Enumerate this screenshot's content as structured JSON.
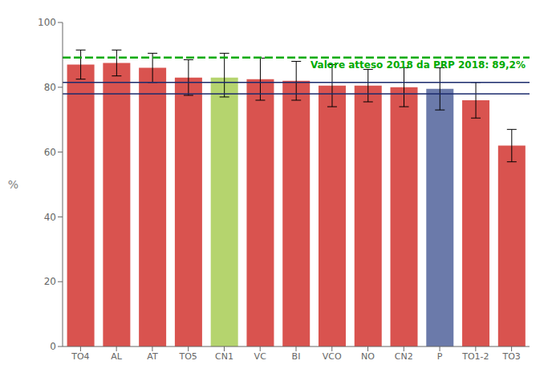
{
  "chart_data": {
    "type": "bar",
    "categories": [
      "TO4",
      "AL",
      "AT",
      "TO5",
      "CN1",
      "VC",
      "BI",
      "VCO",
      "NO",
      "CN2",
      "P",
      "TO1-2",
      "TO3"
    ],
    "values": [
      87.0,
      87.5,
      86.0,
      83.0,
      83.0,
      82.5,
      82.0,
      80.5,
      80.5,
      80.0,
      79.5,
      76.0,
      62.0
    ],
    "errors_upper": [
      4.5,
      4.0,
      4.5,
      5.5,
      7.5,
      6.5,
      6.0,
      6.5,
      5.0,
      6.0,
      6.5,
      5.5,
      5.0
    ],
    "errors_lower": [
      4.5,
      4.0,
      4.5,
      5.5,
      6.0,
      6.5,
      6.0,
      6.5,
      5.0,
      6.0,
      6.5,
      5.5,
      5.0
    ],
    "colors": [
      "#d9534f",
      "#d9534f",
      "#d9534f",
      "#d9534f",
      "#b5d46e",
      "#d9534f",
      "#d9534f",
      "#d9534f",
      "#d9534f",
      "#d9534f",
      "#6b7aaa",
      "#d9534f",
      "#d9534f"
    ],
    "reference_lines": [
      {
        "value": 81.5,
        "color": "#1a2a6c",
        "line_style": "solid"
      },
      {
        "value": 78.0,
        "color": "#1a2a6c",
        "line_style": "solid"
      },
      {
        "value": 89.2,
        "color": "#00aa00",
        "line_style": "dashed",
        "label": "Valore atteso 2018 da PRP 2018: 89,2%"
      }
    ],
    "ylabel": "%",
    "ylim": [
      0,
      100
    ],
    "yticks": [
      0,
      20,
      40,
      60,
      80,
      100
    ],
    "grid": false
  }
}
